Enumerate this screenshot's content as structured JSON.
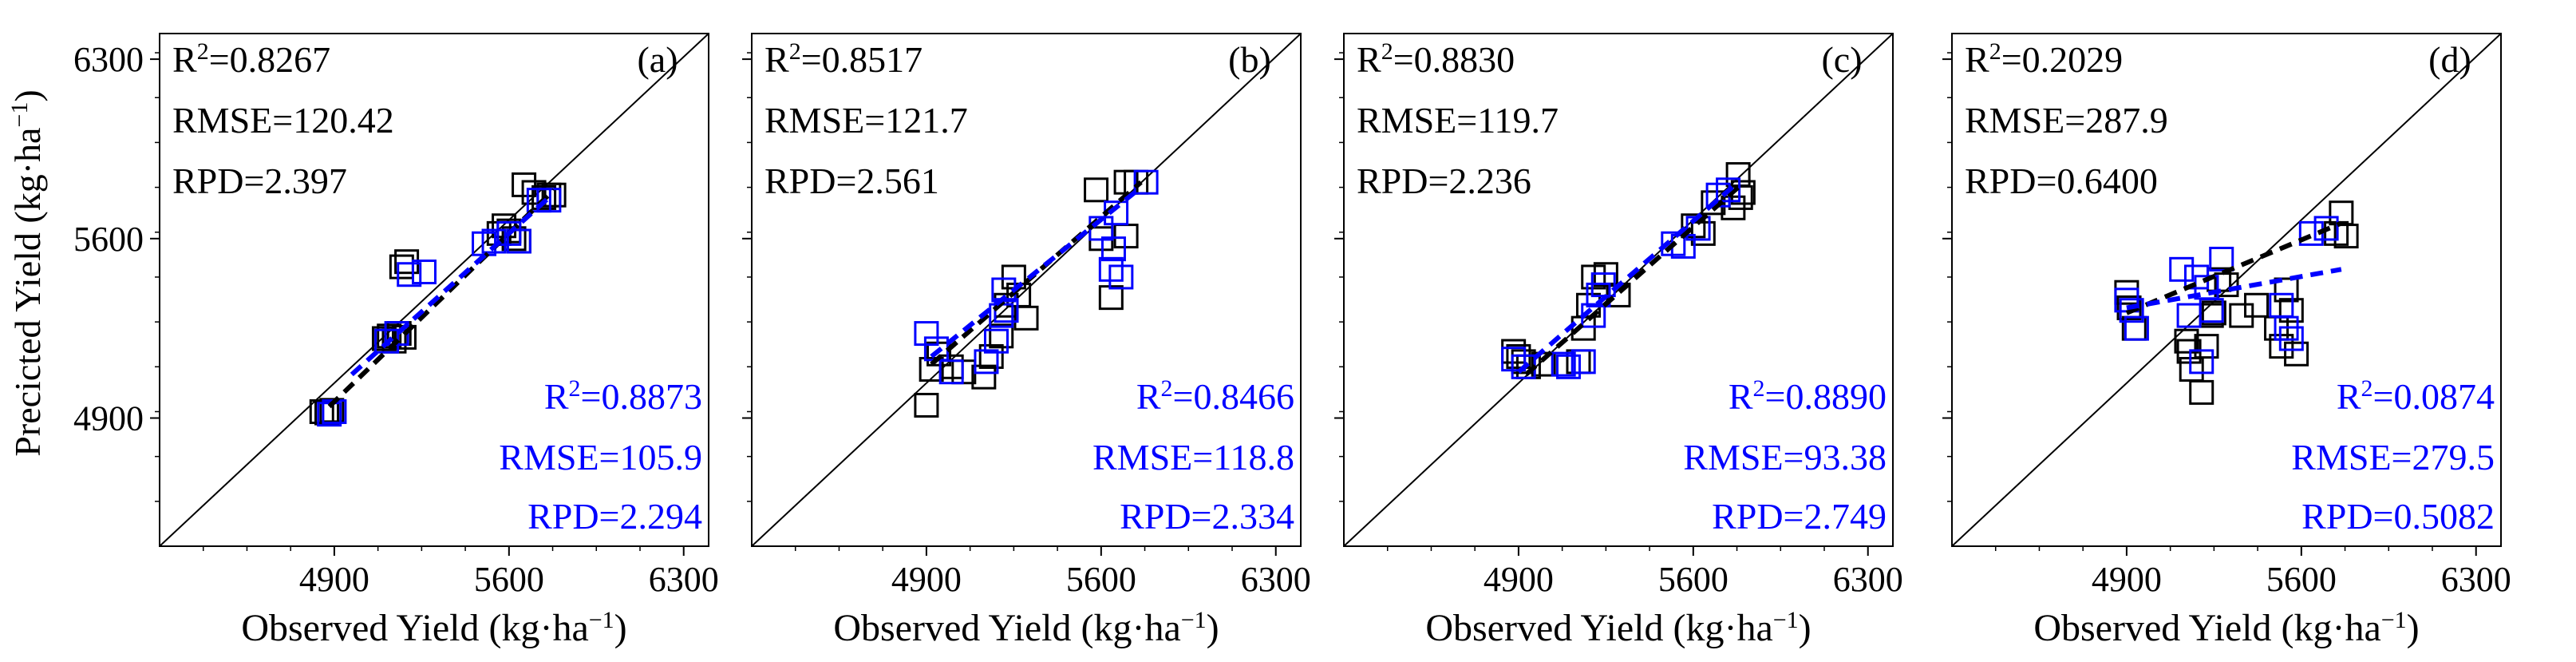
{
  "figure": {
    "ylabel": "Precicted Yield (kg·ha⁻¹)",
    "axis": {
      "xlim": [
        4200,
        6400
      ],
      "ylim": [
        4400,
        6400
      ],
      "ticks": [
        4900,
        5600,
        6300
      ],
      "tick_labels": [
        "4900",
        "5600",
        "6300"
      ]
    },
    "colors": {
      "train": "#000000",
      "test": "#0000ff",
      "identity": "#000000"
    }
  },
  "chart_data": [
    {
      "type": "scatter",
      "panel_label": "(a)",
      "xlabel": "Observed Yield (kg·ha⁻¹)",
      "train_stats": {
        "r2": "R²=0.8267",
        "rmse": "RMSE=120.42",
        "rpd": "RPD=2.397"
      },
      "test_stats": {
        "r2": "R²=0.8873",
        "rmse": "RMSE=105.9",
        "rpd": "RPD=2.294"
      },
      "series": [
        {
          "name": "train",
          "color": "#000000",
          "x": [
            4850,
            4870,
            4890,
            5100,
            5120,
            5140,
            5160,
            5180,
            5170,
            5190,
            5560,
            5580,
            5600,
            5620,
            5640,
            5660,
            5700,
            5740,
            5760,
            5780
          ],
          "y": [
            4925,
            4920,
            4930,
            5210,
            5220,
            5200,
            5230,
            5215,
            5490,
            5510,
            5620,
            5650,
            5630,
            5600,
            5590,
            5810,
            5780,
            5760,
            5770,
            5770
          ]
        },
        {
          "name": "test",
          "color": "#0000ff",
          "x": [
            4880,
            4900,
            5110,
            5150,
            5200,
            5260,
            5500,
            5540,
            5600,
            5640,
            5720,
            5760
          ],
          "y": [
            4915,
            4925,
            5200,
            5230,
            5460,
            5470,
            5580,
            5590,
            5620,
            5590,
            5750,
            5750
          ]
        }
      ],
      "fit_lines": [
        {
          "name": "train-fit",
          "color": "#000000",
          "x": [
            4880,
            5780
          ],
          "y": [
            4945,
            5790
          ]
        },
        {
          "name": "test-fit",
          "color": "#0000ff",
          "x": [
            4970,
            5760
          ],
          "y": [
            5070,
            5760
          ]
        }
      ]
    },
    {
      "type": "scatter",
      "panel_label": "(b)",
      "xlabel": "Observed Yield (kg·ha⁻¹)",
      "train_stats": {
        "r2": "R²=0.8517",
        "rmse": "RMSE=121.7",
        "rpd": "RPD=2.561"
      },
      "test_stats": {
        "r2": "R²=0.8466",
        "rmse": "RMSE=118.8",
        "rpd": "RPD=2.334"
      },
      "series": [
        {
          "name": "train",
          "color": "#000000",
          "x": [
            4900,
            4920,
            4950,
            5000,
            5050,
            5130,
            5160,
            5200,
            5220,
            5250,
            5270,
            5300,
            5580,
            5600,
            5640,
            5700,
            5740,
            5700
          ],
          "y": [
            4950,
            5090,
            5150,
            5100,
            5080,
            5060,
            5140,
            5220,
            5340,
            5450,
            5380,
            5290,
            5790,
            5600,
            5370,
            5610,
            5820,
            5820
          ]
        },
        {
          "name": "test",
          "color": "#0000ff",
          "x": [
            4900,
            4940,
            5000,
            5140,
            5180,
            5200,
            5210,
            5220,
            5600,
            5640,
            5650,
            5660,
            5680,
            5780
          ],
          "y": [
            5230,
            5170,
            5080,
            5120,
            5200,
            5300,
            5400,
            5320,
            5640,
            5480,
            5560,
            5700,
            5450,
            5820
          ]
        }
      ],
      "fit_lines": [
        {
          "name": "train-fit",
          "color": "#000000",
          "x": [
            4920,
            5760
          ],
          "y": [
            5110,
            5820
          ]
        },
        {
          "name": "test-fit",
          "color": "#0000ff",
          "x": [
            4920,
            5760
          ],
          "y": [
            5140,
            5800
          ]
        }
      ]
    },
    {
      "type": "scatter",
      "panel_label": "(c)",
      "xlabel": "Observed Yield (kg·ha⁻¹)",
      "train_stats": {
        "r2": "R²=0.8830",
        "rmse": "RMSE=119.7",
        "rpd": "RPD=2.236"
      },
      "test_stats": {
        "r2": "R²=0.8890",
        "rmse": "RMSE=93.38",
        "rpd": "RPD=2.749"
      },
      "series": [
        {
          "name": "train",
          "color": "#000000",
          "x": [
            4880,
            4900,
            4920,
            4940,
            5000,
            5140,
            5160,
            5180,
            5200,
            5250,
            5300,
            5600,
            5640,
            5680,
            5760,
            5780,
            5790,
            5800
          ],
          "y": [
            5160,
            5140,
            5120,
            5100,
            5110,
            5120,
            5250,
            5340,
            5450,
            5460,
            5380,
            5650,
            5620,
            5740,
            5720,
            5850,
            5760,
            5780
          ]
        },
        {
          "name": "test",
          "color": "#0000ff",
          "x": [
            4880,
            4920,
            5080,
            5100,
            5160,
            5200,
            5220,
            5240,
            5520,
            5560,
            5620,
            5700,
            5740
          ],
          "y": [
            5130,
            5100,
            5110,
            5100,
            5120,
            5300,
            5380,
            5420,
            5580,
            5570,
            5640,
            5770,
            5790
          ]
        }
      ],
      "fit_lines": [
        {
          "name": "train-fit",
          "color": "#000000",
          "x": [
            4930,
            5780
          ],
          "y": [
            5070,
            5800
          ]
        },
        {
          "name": "test-fit",
          "color": "#0000ff",
          "x": [
            4900,
            5780
          ],
          "y": [
            5080,
            5820
          ]
        }
      ]
    },
    {
      "type": "scatter",
      "panel_label": "(d)",
      "xlabel": "Observed Yield (kg·ha⁻¹)",
      "train_stats": {
        "r2": "R²=0.2029",
        "rmse": "RMSE=287.9",
        "rpd": "RPD=0.6400"
      },
      "test_stats": {
        "r2": "R²=0.0874",
        "rmse": "RMSE=279.5",
        "rpd": "RPD=0.5082"
      },
      "series": [
        {
          "name": "train",
          "color": "#000000",
          "x": [
            4900,
            4910,
            4930,
            5140,
            5150,
            5160,
            5200,
            5220,
            5240,
            5250,
            5270,
            5300,
            5360,
            5420,
            5500,
            5520,
            5540,
            5560,
            5580,
            5740,
            5760,
            5780
          ],
          "y": [
            5390,
            5330,
            5250,
            5200,
            5160,
            5090,
            5000,
            5180,
            5300,
            5310,
            5440,
            5420,
            5300,
            5340,
            5250,
            5180,
            5400,
            5320,
            5150,
            5620,
            5700,
            5610
          ]
        },
        {
          "name": "test",
          "color": "#0000ff",
          "x": [
            4900,
            4920,
            4940,
            5120,
            5150,
            5180,
            5200,
            5220,
            5240,
            5280,
            5520,
            5540,
            5560,
            5640,
            5700
          ],
          "y": [
            5360,
            5320,
            5250,
            5480,
            5300,
            5450,
            5120,
            5410,
            5320,
            5520,
            5340,
            5250,
            5210,
            5620,
            5640
          ]
        }
      ],
      "fit_lines": [
        {
          "name": "train-fit",
          "color": "#000000",
          "x": [
            4900,
            5760
          ],
          "y": [
            5310,
            5660
          ]
        },
        {
          "name": "test-fit",
          "color": "#0000ff",
          "x": [
            4900,
            5760
          ],
          "y": [
            5330,
            5480
          ]
        }
      ]
    }
  ]
}
